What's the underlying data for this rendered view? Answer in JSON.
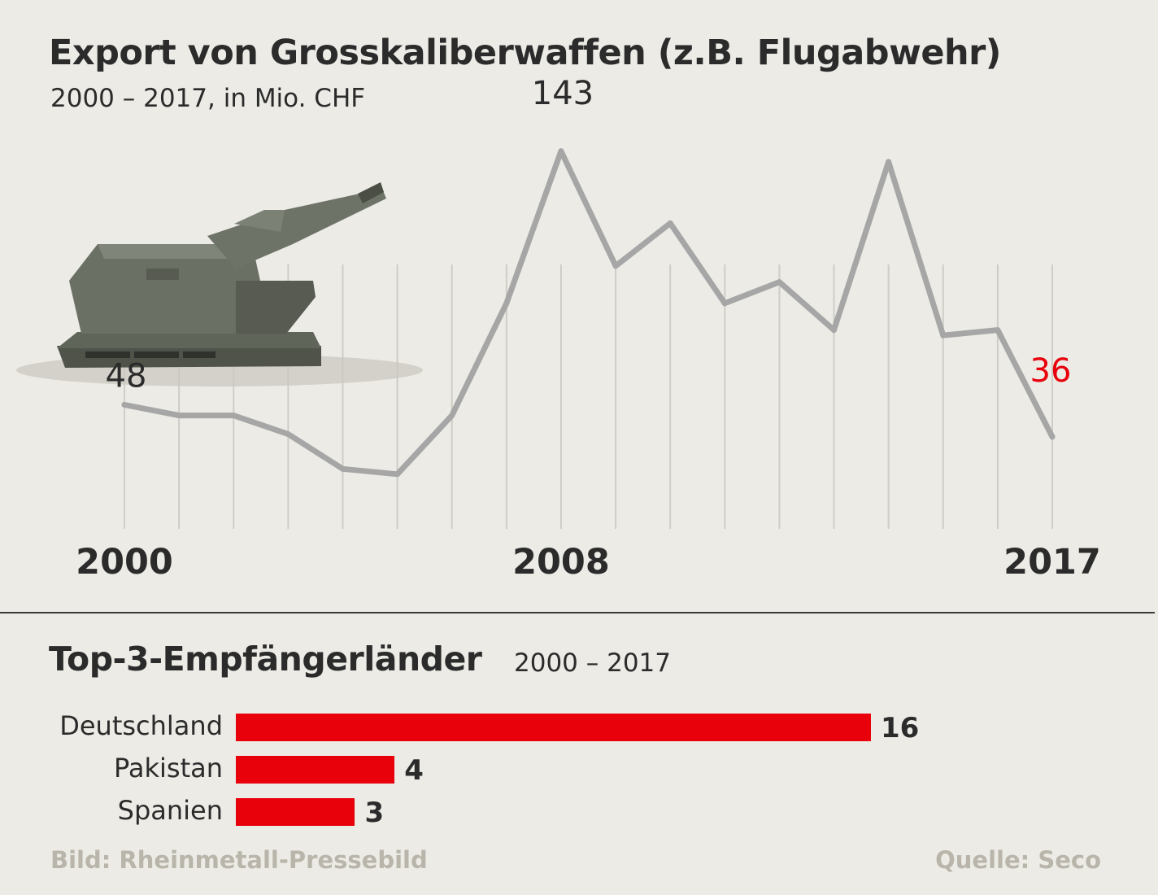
{
  "header": {
    "title": "Export von Grosskaliberwaffen (z.B. Flugabwehr)",
    "subtitle": "2000 – 2017, in Mio. CHF"
  },
  "colors": {
    "line": "#a6a6a6",
    "grid": "#cfcdc6",
    "accent": "#e8000b",
    "text": "#2b2b2b",
    "muted": "#b9b5aa"
  },
  "chart_data": [
    {
      "type": "line",
      "title": "Export von Grosskaliberwaffen (z.B. Flugabwehr)",
      "subtitle": "2000 – 2017, in Mio. CHF",
      "x": [
        2000,
        2001,
        2002,
        2003,
        2004,
        2005,
        2006,
        2007,
        2008,
        2009,
        2010,
        2011,
        2012,
        2013,
        2014,
        2015,
        2016,
        2017
      ],
      "values": [
        48,
        44,
        44,
        37,
        24,
        22,
        44,
        86,
        143,
        100,
        116,
        86,
        94,
        76,
        139,
        74,
        76,
        36
      ],
      "ylim": [
        0,
        160
      ],
      "x_tick_labels": [
        "2000",
        "2008",
        "2017"
      ],
      "data_labels": [
        {
          "x": 2000,
          "text": "48",
          "highlight": false
        },
        {
          "x": 2008,
          "text": "143",
          "highlight": false
        },
        {
          "x": 2017,
          "text": "36",
          "highlight": true
        }
      ],
      "grid": "vertical"
    },
    {
      "type": "bar",
      "title": "Top-3-Empfängerländer",
      "subtitle": "2000 – 2017",
      "categories": [
        "Deutschland",
        "Pakistan",
        "Spanien"
      ],
      "values": [
        16,
        4,
        3
      ],
      "orientation": "horizontal"
    }
  ],
  "footer": {
    "image_credit": "Bild: Rheinmetall-Pressebild",
    "source": "Quelle: Seco"
  },
  "illustration": {
    "icon": "anti-aircraft-gun-icon"
  }
}
